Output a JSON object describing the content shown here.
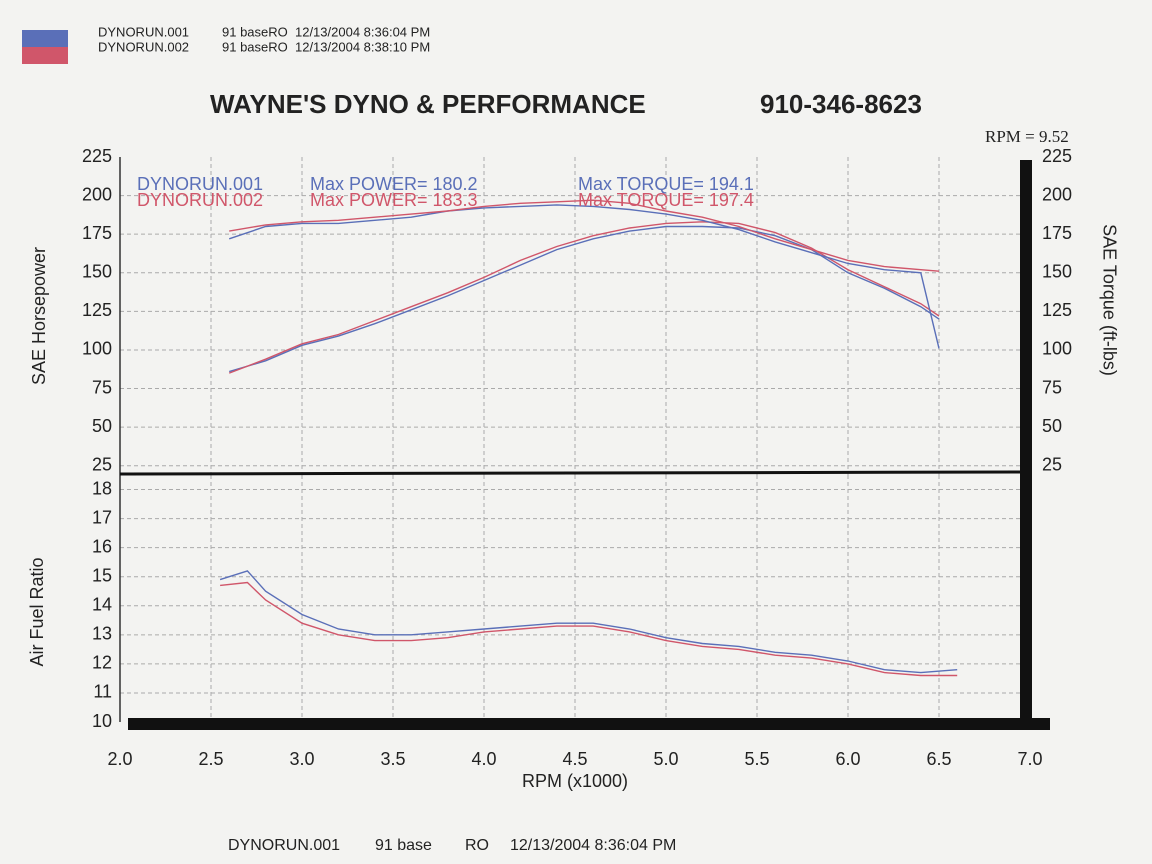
{
  "header": {
    "legend_info": [
      "91 baseRO  12/13/2004 8:36:04 PM",
      "91 baseRO  12/13/2004 8:38:10 PM"
    ],
    "title": "WAYNE'S DYNO & PERFORMANCE",
    "phone": "910-346-8623",
    "rpm_note": "RPM = 9.52"
  },
  "chart_data": [
    {
      "type": "line",
      "ylabel": "SAE Horsepower",
      "y2label": "SAE Torque (ft-lbs)",
      "annotations": [
        "Max POWER= 180.2",
        "Max TORQUE= 194.1",
        "Max POWER= 183.3",
        "Max TORQUE= 197.4"
      ],
      "x": [
        2.6,
        2.8,
        3.0,
        3.2,
        3.4,
        3.6,
        3.8,
        4.0,
        4.2,
        4.4,
        4.6,
        4.8,
        5.0,
        5.2,
        5.4,
        5.6,
        5.8,
        6.0,
        6.2,
        6.4,
        6.5
      ],
      "xlim": [
        2,
        7
      ],
      "ylim": [
        19,
        225
      ],
      "yticks": [
        25,
        50,
        75,
        100,
        125,
        150,
        175,
        200,
        225
      ],
      "y2lim": [
        19,
        225
      ],
      "y2ticks": [
        25,
        50,
        75,
        100,
        125,
        150,
        175,
        200,
        225
      ],
      "grid": true,
      "series": [
        {
          "name": "DYNORUN.001",
          "color": "#5a6fb8",
          "values": [
            86,
            93,
            103,
            109,
            117,
            126,
            135,
            145,
            155,
            165,
            172,
            177,
            180,
            180,
            179,
            174,
            165,
            150,
            140,
            128,
            120
          ]
        },
        {
          "name": "DYNORUN.002",
          "color": "#d0566a",
          "values": [
            85,
            94,
            104,
            110,
            119,
            128,
            137,
            147,
            158,
            167,
            174,
            179,
            182,
            183,
            182,
            176,
            166,
            152,
            141,
            130,
            122
          ]
        },
        {
          "name": "DYNORUN.001",
          "color": "#5a6fb8",
          "axis": "y2",
          "values": [
            172,
            180,
            182,
            182,
            184,
            186,
            190,
            192,
            193,
            194,
            193,
            191,
            188,
            184,
            178,
            170,
            163,
            156,
            152,
            150,
            101
          ]
        },
        {
          "name": "DYNORUN.002",
          "color": "#d0566a",
          "axis": "y2",
          "values": [
            177,
            181,
            183,
            184,
            186,
            188,
            190,
            193,
            195,
            196,
            197,
            195,
            190,
            186,
            180,
            172,
            165,
            158,
            154,
            152,
            151
          ]
        }
      ]
    },
    {
      "type": "line",
      "ylabel": "Air Fuel Ratio",
      "xlabel": "RPM (x1000)",
      "x": [
        2.55,
        2.7,
        2.8,
        3.0,
        3.2,
        3.4,
        3.6,
        3.8,
        4.0,
        4.2,
        4.4,
        4.6,
        4.8,
        5.0,
        5.2,
        5.4,
        5.6,
        5.8,
        6.0,
        6.2,
        6.4,
        6.6
      ],
      "xlim": [
        2,
        7
      ],
      "xticks": [
        {
          "value": 2,
          "label": "2.0"
        },
        2.5,
        {
          "value": 3,
          "label": "3.0"
        },
        3.5,
        {
          "value": 4,
          "label": "4.0"
        },
        4.5,
        {
          "value": 5,
          "label": "5.0"
        },
        5.5,
        {
          "value": 6,
          "label": "6.0"
        },
        6.5,
        {
          "value": 7,
          "label": "7.0"
        }
      ],
      "ylim": [
        10,
        18.5
      ],
      "yticks": [
        10,
        11,
        12,
        13,
        14,
        15,
        16,
        17,
        18
      ],
      "grid": true,
      "series": [
        {
          "color": "#5a6fb8",
          "values": [
            14.9,
            15.2,
            14.5,
            13.7,
            13.2,
            13.0,
            13.0,
            13.1,
            13.2,
            13.3,
            13.4,
            13.4,
            13.2,
            12.9,
            12.7,
            12.6,
            12.4,
            12.3,
            12.1,
            11.8,
            11.7,
            11.8
          ]
        },
        {
          "color": "#d0566a",
          "values": [
            14.7,
            14.8,
            14.2,
            13.4,
            13.0,
            12.8,
            12.8,
            12.9,
            13.1,
            13.2,
            13.3,
            13.3,
            13.1,
            12.8,
            12.6,
            12.5,
            12.3,
            12.2,
            12.0,
            11.7,
            11.6,
            11.6
          ]
        }
      ]
    }
  ],
  "footer": {
    "run": "DYNORUN.001",
    "fuel": "91 base",
    "mode": "RO",
    "date": "12/13/2004 8:36:04 PM"
  }
}
